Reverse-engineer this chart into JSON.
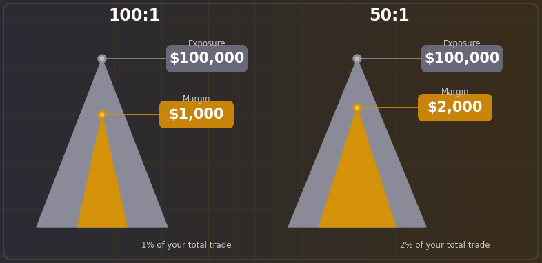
{
  "bg_color_left": "#2a2b35",
  "bg_color_right": "#3a2d1a",
  "grid_color": "#3d3520",
  "title_color": "#ffffff",
  "label_color": "#c8c8c8",
  "box_gray_color": "#686878",
  "box_orange_color": "#c8850a",
  "text_white": "#ffffff",
  "dot_gray_color": "#909098",
  "dot_orange_color": "#d4920a",
  "line_gray_color": "#909098",
  "line_orange_color": "#d4920a",
  "left_ratio": "100:1",
  "right_ratio": "50:1",
  "left_exposure_label": "Exposure",
  "right_exposure_label": "Exposure",
  "left_exposure_value": "$100,000",
  "right_exposure_value": "$100,000",
  "left_margin_label": "Margin",
  "right_margin_label": "Margin",
  "left_margin_value": "$1,000",
  "right_margin_value": "$2,000",
  "left_trade_text": "1% of your total trade",
  "right_trade_text": "2% of your total trade",
  "gray_tri_color": "#8a8a98",
  "orange_tri_color": "#d4920a",
  "fig_w": 7.86,
  "fig_h": 3.81,
  "dpi": 100
}
